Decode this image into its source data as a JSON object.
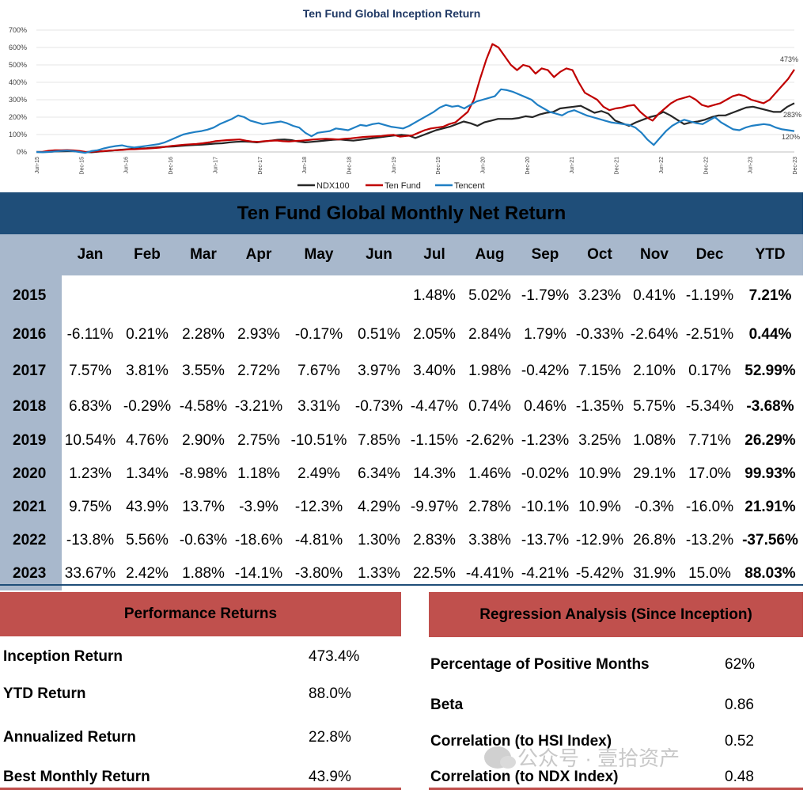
{
  "chart_data": {
    "type": "line",
    "title": "Ten Fund Global Inception Return",
    "ylim": [
      0,
      700
    ],
    "y_ticks": [
      "0%",
      "100%",
      "200%",
      "300%",
      "400%",
      "500%",
      "600%",
      "700%"
    ],
    "x_tick_labels": [
      "Jun-15",
      "Dec-15",
      "Jun-16",
      "Dec-16",
      "Jun-17",
      "Dec-17",
      "Jun-18",
      "Dec-18",
      "Jun-19",
      "Dec-19",
      "Jun-20",
      "Dec-20",
      "Jun-21",
      "Dec-21",
      "Jun-22",
      "Dec-22",
      "Jun-23",
      "Dec-23"
    ],
    "grid": true,
    "legend": "bottom-center",
    "end_labels": [
      "473%",
      "283%",
      "120%"
    ],
    "series": [
      {
        "name": "NDX100",
        "color": "#262626",
        "values": [
          0,
          0,
          1,
          3,
          4,
          5,
          3,
          0,
          -2,
          2,
          5,
          8,
          12,
          15,
          18,
          20,
          22,
          25,
          28,
          30,
          32,
          35,
          38,
          40,
          42,
          45,
          48,
          50,
          55,
          58,
          60,
          58,
          55,
          60,
          65,
          70,
          72,
          68,
          60,
          55,
          58,
          62,
          66,
          70,
          72,
          68,
          65,
          70,
          75,
          80,
          85,
          90,
          95,
          98,
          95,
          80,
          95,
          110,
          125,
          135,
          145,
          160,
          175,
          165,
          150,
          170,
          180,
          190,
          190,
          190,
          195,
          205,
          200,
          215,
          225,
          230,
          250,
          255,
          260,
          265,
          245,
          225,
          235,
          220,
          180,
          165,
          150,
          170,
          185,
          200,
          210,
          230,
          210,
          185,
          160,
          170,
          175,
          185,
          200,
          210,
          210,
          225,
          240,
          255,
          260,
          250,
          240,
          230,
          230,
          260,
          280
        ]
      },
      {
        "name": "Ten Fund",
        "color": "#c00000",
        "values": [
          0,
          1,
          7,
          10,
          10,
          11,
          9,
          6,
          0,
          2,
          3,
          5,
          8,
          10,
          12,
          15,
          16,
          18,
          20,
          22,
          25,
          30,
          35,
          38,
          42,
          44,
          46,
          50,
          55,
          62,
          65,
          68,
          70,
          72,
          65,
          60,
          58,
          62,
          64,
          66,
          62,
          60,
          63,
          65,
          68,
          72,
          74,
          76,
          74,
          72,
          76,
          78,
          82,
          86,
          88,
          90,
          92,
          96,
          98,
          88,
          92,
          95,
          110,
          125,
          135,
          140,
          145,
          160,
          170,
          200,
          230,
          300,
          420,
          530,
          620,
          600,
          550,
          500,
          470,
          500,
          490,
          450,
          480,
          470,
          430,
          460,
          480,
          470,
          400,
          340,
          320,
          300,
          260,
          240,
          250,
          255,
          265,
          270,
          230,
          200,
          180,
          220,
          250,
          280,
          300,
          310,
          320,
          300,
          270,
          260,
          270,
          280,
          300,
          320,
          330,
          320,
          300,
          290,
          280,
          300,
          340,
          380,
          420,
          473
        ]
      },
      {
        "name": "Tencent",
        "color": "#1f7fc4",
        "values": [
          0,
          -2,
          0,
          3,
          6,
          8,
          5,
          0,
          -5,
          5,
          10,
          20,
          28,
          34,
          38,
          30,
          26,
          30,
          35,
          40,
          45,
          55,
          70,
          85,
          100,
          108,
          115,
          120,
          128,
          140,
          160,
          175,
          190,
          210,
          200,
          180,
          170,
          160,
          165,
          170,
          175,
          165,
          150,
          140,
          110,
          90,
          110,
          115,
          120,
          135,
          130,
          125,
          140,
          155,
          150,
          160,
          165,
          155,
          145,
          140,
          135,
          150,
          170,
          190,
          210,
          230,
          255,
          270,
          260,
          265,
          250,
          270,
          290,
          300,
          310,
          320,
          360,
          355,
          345,
          330,
          315,
          300,
          270,
          250,
          230,
          220,
          210,
          230,
          240,
          225,
          210,
          200,
          190,
          180,
          170,
          165,
          160,
          155,
          140,
          110,
          70,
          40,
          80,
          120,
          150,
          170,
          185,
          175,
          165,
          160,
          180,
          200,
          170,
          150,
          130,
          125,
          140,
          150,
          155,
          160,
          155,
          140,
          130,
          125,
          120
        ]
      }
    ]
  },
  "monthly": {
    "title": "Ten Fund Global Monthly Net Return",
    "headers": [
      "",
      "Jan",
      "Feb",
      "Mar",
      "Apr",
      "May",
      "Jun",
      "Jul",
      "Aug",
      "Sep",
      "Oct",
      "Nov",
      "Dec",
      "YTD"
    ],
    "rows": [
      [
        "2015",
        "",
        "",
        "",
        "",
        "",
        "",
        "1.48%",
        "5.02%",
        "-1.79%",
        "3.23%",
        "0.41%",
        "-1.19%",
        "7.21%"
      ],
      [
        "2016",
        "-6.11%",
        "0.21%",
        "2.28%",
        "2.93%",
        "-0.17%",
        "0.51%",
        "2.05%",
        "2.84%",
        "1.79%",
        "-0.33%",
        "-2.64%",
        "-2.51%",
        "0.44%"
      ],
      [
        "2017",
        "7.57%",
        "3.81%",
        "3.55%",
        "2.72%",
        "7.67%",
        "3.97%",
        "3.40%",
        "1.98%",
        "-0.42%",
        "7.15%",
        "2.10%",
        "0.17%",
        "52.99%"
      ],
      [
        "2018",
        "6.83%",
        "-0.29%",
        "-4.58%",
        "-3.21%",
        "3.31%",
        "-0.73%",
        "-4.47%",
        "0.74%",
        "0.46%",
        "-1.35%",
        "5.75%",
        "-5.34%",
        "-3.68%"
      ],
      [
        "2019",
        "10.54%",
        "4.76%",
        "2.90%",
        "2.75%",
        "-10.51%",
        "7.85%",
        "-1.15%",
        "-2.62%",
        "-1.23%",
        "3.25%",
        "1.08%",
        "7.71%",
        "26.29%"
      ],
      [
        "2020",
        "1.23%",
        "1.34%",
        "-8.98%",
        "1.18%",
        "2.49%",
        "6.34%",
        "14.3%",
        "1.46%",
        "-0.02%",
        "10.9%",
        "29.1%",
        "17.0%",
        "99.93%"
      ],
      [
        "2021",
        "9.75%",
        "43.9%",
        "13.7%",
        "-3.9%",
        "-12.3%",
        "4.29%",
        "-9.97%",
        "2.78%",
        "-10.1%",
        "10.9%",
        "-0.3%",
        "-16.0%",
        "21.91%"
      ],
      [
        "2022",
        "-13.8%",
        "5.56%",
        "-0.63%",
        "-18.6%",
        "-4.81%",
        "1.30%",
        "2.83%",
        "3.38%",
        "-13.7%",
        "-12.9%",
        "26.8%",
        "-13.2%",
        "-37.56%"
      ],
      [
        "2023",
        "33.67%",
        "2.42%",
        "1.88%",
        "-14.1%",
        "-3.80%",
        "1.33%",
        "22.5%",
        "-4.41%",
        "-4.21%",
        "-5.42%",
        "31.9%",
        "15.0%",
        "88.03%"
      ]
    ]
  },
  "performance": {
    "title": "Performance Returns",
    "items": [
      {
        "label": "Inception Return",
        "value": "473.4%"
      },
      {
        "label": "YTD Return",
        "value": "88.0%"
      },
      {
        "label": "Annualized Return",
        "value": "22.8%"
      },
      {
        "label": "Best Monthly Return",
        "value": "43.9%"
      }
    ]
  },
  "regression": {
    "title": "Regression Analysis (Since Inception)",
    "items": [
      {
        "label": "Percentage of Positive Months",
        "value": "62%"
      },
      {
        "label": "Beta",
        "value": "0.86"
      },
      {
        "label": "Correlation (to HSI Index)",
        "value": "0.52"
      },
      {
        "label": "Correlation (to NDX Index)",
        "value": "0.48"
      }
    ]
  },
  "watermark": {
    "text": "公众号 · 壹拾资产"
  },
  "colors": {
    "table_header": "#a8b8cc",
    "table_title": "#1f4e79",
    "panel_header": "#c0504d"
  }
}
